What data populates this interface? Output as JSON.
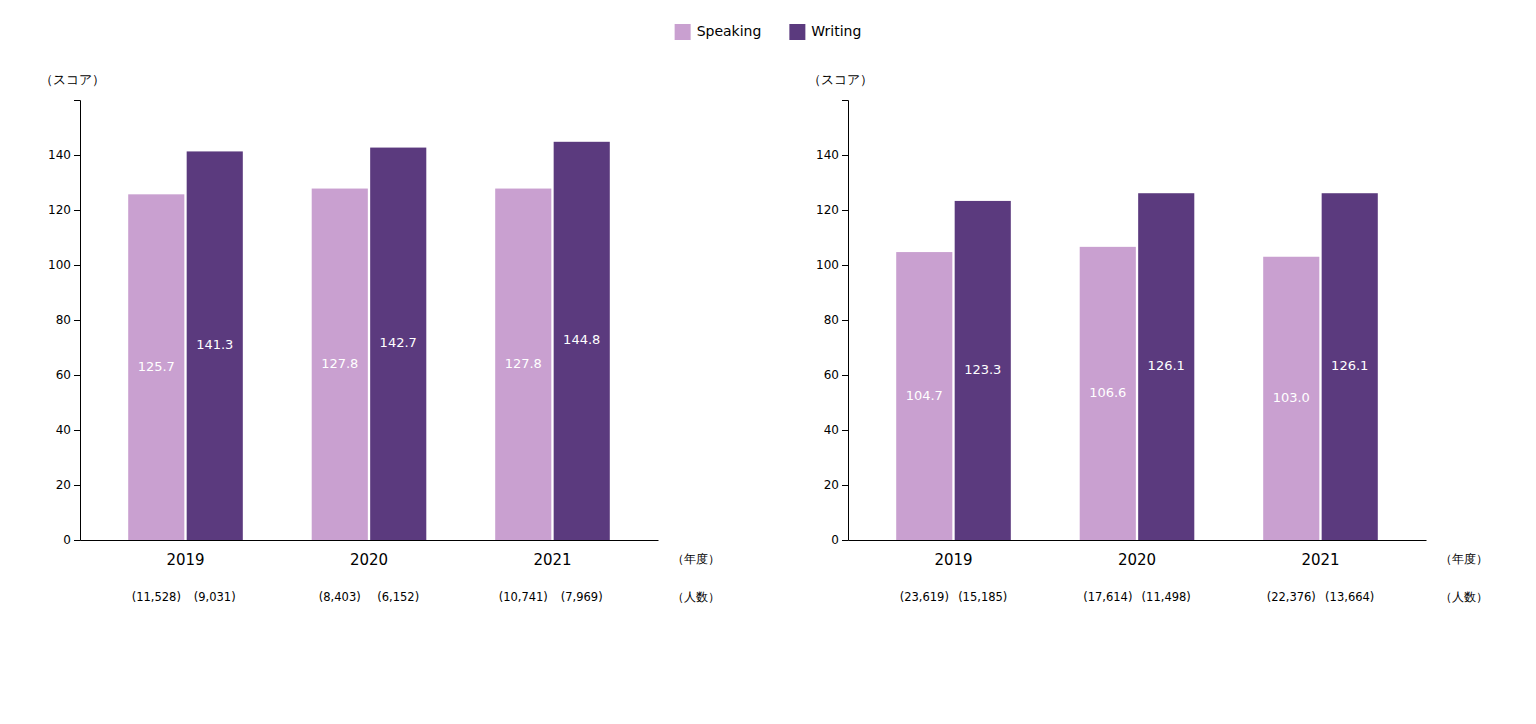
{
  "chart_data": [
    {
      "type": "bar",
      "ylabel": "（スコア）",
      "xlabel": "（年度）",
      "annotation": "（人数）",
      "categories": [
        "2019",
        "2020",
        "2021"
      ],
      "series": [
        {
          "name": "Speaking",
          "color": "#c9a0d0",
          "values": [
            125.7,
            127.8,
            127.8
          ],
          "count_labels": [
            "(11,528)",
            "(8,403)",
            "(10,741)"
          ]
        },
        {
          "name": "Writing",
          "color": "#5b3a7e",
          "values": [
            141.3,
            142.7,
            144.8
          ],
          "count_labels": [
            "(9,031)",
            "(6,152)",
            "(7,969)"
          ]
        }
      ],
      "ylim": [
        0,
        160
      ],
      "yticks": [
        0,
        20,
        40,
        60,
        80,
        100,
        120,
        140
      ],
      "grid": false,
      "data_labels": true,
      "legend": "top"
    },
    {
      "type": "bar",
      "ylabel": "（スコア）",
      "xlabel": "（年度）",
      "annotation": "（人数）",
      "categories": [
        "2019",
        "2020",
        "2021"
      ],
      "series": [
        {
          "name": "Speaking",
          "color": "#c9a0d0",
          "values": [
            104.7,
            106.6,
            103.0
          ],
          "value_labels": [
            "104.7",
            "106.6",
            "103.0"
          ],
          "count_labels": [
            "(23,619)",
            "(17,614)",
            "(22,376)"
          ]
        },
        {
          "name": "Writing",
          "color": "#5b3a7e",
          "values": [
            123.3,
            126.1,
            126.1
          ],
          "count_labels": [
            "(15,185)",
            "(11,498)",
            "(13,664)"
          ]
        }
      ],
      "ylim": [
        0,
        160
      ],
      "yticks": [
        0,
        20,
        40,
        60,
        80,
        100,
        120,
        140
      ],
      "grid": false,
      "data_labels": true
    }
  ]
}
